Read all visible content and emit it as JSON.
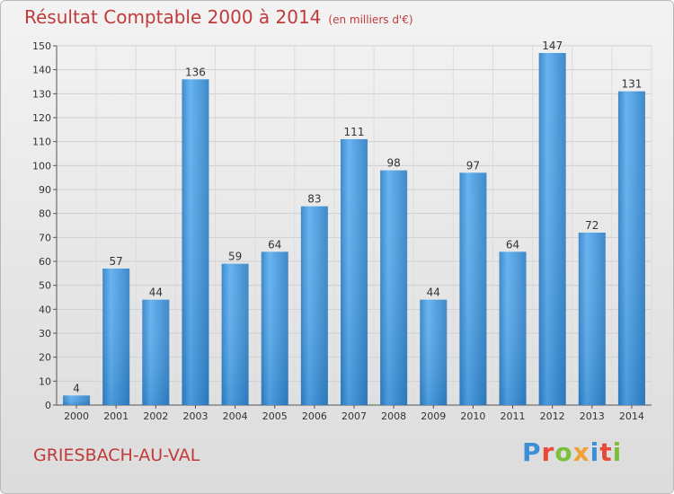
{
  "header": {
    "title": "Résultat Comptable 2000 à 2014",
    "unit": "(en milliers d'€)"
  },
  "footer": {
    "commune": "GRIESBACH-AU-VAL",
    "logo": "Proxiti",
    "logo_colors": [
      "#3a8fd6",
      "#e8493a",
      "#7bbf3a",
      "#f2a03a",
      "#3a8fd6",
      "#e8493a",
      "#7bbf3a"
    ]
  },
  "chart_data": {
    "type": "bar",
    "categories": [
      "2000",
      "2001",
      "2002",
      "2003",
      "2004",
      "2005",
      "2006",
      "2007",
      "2008",
      "2009",
      "2010",
      "2011",
      "2012",
      "2013",
      "2014"
    ],
    "values": [
      4,
      57,
      44,
      136,
      59,
      64,
      83,
      111,
      98,
      44,
      97,
      64,
      147,
      72,
      131
    ],
    "ylim": [
      0,
      150
    ],
    "yticks": [
      0,
      10,
      20,
      30,
      40,
      50,
      60,
      70,
      80,
      90,
      100,
      110,
      120,
      130,
      140,
      150
    ],
    "grid": true,
    "bar_color": "#3a8fd6"
  }
}
